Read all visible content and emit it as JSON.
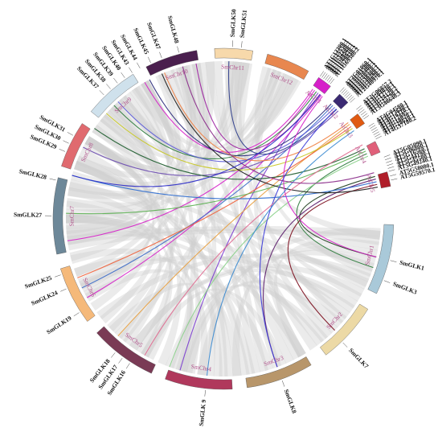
{
  "chromosomes": [
    {
      "id": "SmChr1",
      "label": "SmChr1",
      "color": "#a9c9d9",
      "text_color": "#b0508a",
      "start": 92,
      "end": 116
    },
    {
      "id": "SmChr2",
      "label": "SmChr2",
      "color": "#ecd9a5",
      "text_color": "#b0508a",
      "start": 122,
      "end": 143
    },
    {
      "id": "SmChr3",
      "label": "SmChr3",
      "color": "#b8966a",
      "text_color": "#b0508a",
      "start": 149,
      "end": 172
    },
    {
      "id": "SmChr4",
      "label": "SmChr4",
      "color": "#b0385c",
      "text_color": "#b0508a",
      "start": 177,
      "end": 200
    },
    {
      "id": "SmChr5",
      "label": "SmChr5",
      "color": "#7a3a55",
      "text_color": "#b0508a",
      "start": 205,
      "end": 228
    },
    {
      "id": "SmChr6",
      "label": "SmChr6",
      "color": "#f5b97a",
      "text_color": "#b0508a",
      "start": 233,
      "end": 253
    },
    {
      "id": "SmChr7",
      "label": "SmChr7",
      "color": "#6d8899",
      "text_color": "#b0508a",
      "start": 258,
      "end": 284
    },
    {
      "id": "SmChr8",
      "label": "SmChr8",
      "color": "#e06a6f",
      "text_color": "#b0508a",
      "start": 288,
      "end": 304
    },
    {
      "id": "SmChr9",
      "label": "SmChr9",
      "color": "#cfe1ec",
      "text_color": "#b0508a",
      "start": 309,
      "end": 328
    },
    {
      "id": "SmChr10",
      "label": "SmChr10",
      "color": "#4a1f4e",
      "text_color": "#b0508a",
      "start": 333,
      "end": 351
    },
    {
      "id": "SmChr11",
      "label": "SmChr11",
      "color": "#f7d9ab",
      "text_color": "#b0508a",
      "start": 357,
      "end": 10
    },
    {
      "id": "SmChr12",
      "label": "SmChr12",
      "color": "#e8874f",
      "text_color": "#b0508a",
      "start": 15,
      "end": 30
    },
    {
      "id": "AtChr1",
      "label": "AtChr1",
      "color": "#d61fc9",
      "text_color": "#b0508a",
      "start": 34,
      "end": 39
    },
    {
      "id": "AtChr2",
      "label": "AtChr2",
      "color": "#3b2a72",
      "text_color": "#b0508a",
      "start": 43,
      "end": 47
    },
    {
      "id": "AtChr3",
      "label": "AtChr3",
      "color": "#e05a12",
      "text_color": "#b0508a",
      "start": 52,
      "end": 56
    },
    {
      "id": "AtChr4",
      "label": "AtChr4",
      "color": "#e0607a",
      "text_color": "#b0508a",
      "start": 63,
      "end": 67
    },
    {
      "id": "AtChr5",
      "label": "AtChr5",
      "color": "#b01e2a",
      "text_color": "#b0508a",
      "start": 74,
      "end": 79
    }
  ],
  "genes": [
    {
      "name": "SmGLK1",
      "angle": 104
    },
    {
      "name": "SmGLK3",
      "angle": 111
    },
    {
      "name": "SmGLK7",
      "angle": 136
    },
    {
      "name": "SmGLK8",
      "angle": 160
    },
    {
      "name": "SmGLK 9",
      "angle": 186
    },
    {
      "name": "SmGLK16",
      "angle": 213
    },
    {
      "name": "SmGLK17",
      "angle": 216
    },
    {
      "name": "SmGLK18",
      "angle": 219
    },
    {
      "name": "SmGLK19",
      "angle": 237
    },
    {
      "name": "SmGLK24",
      "angle": 246
    },
    {
      "name": "SmGLK25",
      "angle": 251
    },
    {
      "name": "SmGLK27",
      "angle": 271
    },
    {
      "name": "SmGLK28",
      "angle": 283
    },
    {
      "name": "SmGLK29",
      "angle": 293
    },
    {
      "name": "SmGLK30",
      "angle": 296
    },
    {
      "name": "SmGLK31",
      "angle": 299
    },
    {
      "name": "SmGLK37",
      "angle": 316
    },
    {
      "name": "SmGLK38",
      "angle": 319
    },
    {
      "name": "SmGLK39",
      "angle": 322
    },
    {
      "name": "SmGLK40",
      "angle": 325
    },
    {
      "name": "SmGLK43",
      "angle": 328
    },
    {
      "name": "SmGLK44",
      "angle": 331
    },
    {
      "name": "SmGLK45",
      "angle": 335
    },
    {
      "name": "SmGLK47",
      "angle": 339
    },
    {
      "name": "SmGLK48",
      "angle": 345
    },
    {
      "name": "SmGLK50",
      "angle": 3
    },
    {
      "name": "SmGLK51",
      "angle": 6
    },
    {
      "name": "AT1G13300.1",
      "angle": 34.2
    },
    {
      "name": "AT1G25550.1",
      "angle": 34.9
    },
    {
      "name": "AT1G32240.1",
      "angle": 35.6
    },
    {
      "name": "AT1G49560.1",
      "angle": 36.3
    },
    {
      "name": "AT1G68670.1",
      "angle": 37.0
    },
    {
      "name": "AT1G79430.2",
      "angle": 37.7
    },
    {
      "name": "AT1G69580.2",
      "angle": 38.4
    },
    {
      "name": "AT2G01060.1",
      "angle": 42.6
    },
    {
      "name": "AT2G03500.1",
      "angle": 43.3
    },
    {
      "name": "AT2G20400.1",
      "angle": 44.0
    },
    {
      "name": "AT2G20570.2",
      "angle": 44.7
    },
    {
      "name": "AT2G38300.1",
      "angle": 45.4
    },
    {
      "name": "AT2G40260.1",
      "angle": 46.1
    },
    {
      "name": "AT2G40970.1",
      "angle": 46.8
    },
    {
      "name": "AT2G40970.1",
      "angle": 47.5
    },
    {
      "name": "AT2G06857.2",
      "angle": 50.6
    },
    {
      "name": "AT3G04030.1",
      "angle": 51.4
    },
    {
      "name": "AT3G12730.1",
      "angle": 52.2
    },
    {
      "name": "AT3G24120.2",
      "angle": 53.0
    },
    {
      "name": "AT3G25790.1",
      "angle": 53.8
    },
    {
      "name": "AT3G46640.3",
      "angle": 54.6
    },
    {
      "name": "AT4G04580.1",
      "angle": 57.6
    },
    {
      "name": "AT4G13640.1",
      "angle": 58.4
    },
    {
      "name": "AT4G16110.1",
      "angle": 59.2
    },
    {
      "name": "AT4G17695.1",
      "angle": 60.0
    },
    {
      "name": "AT4G18020.1",
      "angle": 60.8
    },
    {
      "name": "AT4G28610.1",
      "angle": 61.6
    },
    {
      "name": "AT4G37180.2",
      "angle": 62.4
    },
    {
      "name": "AT5G05090.1",
      "angle": 69.0
    },
    {
      "name": "AT5G06800.1",
      "angle": 70.0
    },
    {
      "name": "AT5G16560.1",
      "angle": 71.0
    },
    {
      "name": "AT5G44190.1",
      "angle": 72.0
    },
    {
      "name": "AT5G45580.1",
      "angle": 73.0
    },
    {
      "name": "AT5G49240.1",
      "angle": 74.0
    },
    {
      "name": "AT5G58080.1",
      "angle": 75.6
    },
    {
      "name": "AT5G59570.1",
      "angle": 77.0
    }
  ],
  "gray_links": [
    [
      95,
      188
    ],
    [
      100,
      150
    ],
    [
      98,
      260
    ],
    [
      103,
      175
    ],
    [
      108,
      300
    ],
    [
      112,
      232
    ],
    [
      114,
      120
    ],
    [
      118,
      215
    ],
    [
      125,
      245
    ],
    [
      128,
      308
    ],
    [
      132,
      193
    ],
    [
      135,
      283
    ],
    [
      138,
      358
    ],
    [
      140,
      200
    ],
    [
      145,
      345
    ],
    [
      150,
      265
    ],
    [
      155,
      320
    ],
    [
      158,
      210
    ],
    [
      163,
      250
    ],
    [
      165,
      5
    ],
    [
      168,
      340
    ],
    [
      170,
      292
    ],
    [
      175,
      225
    ],
    [
      178,
      305
    ],
    [
      182,
      270
    ],
    [
      185,
      350
    ],
    [
      188,
      255
    ],
    [
      192,
      315
    ],
    [
      195,
      240
    ],
    [
      198,
      330
    ],
    [
      203,
      280
    ],
    [
      208,
      352
    ],
    [
      212,
      300
    ],
    [
      218,
      325
    ],
    [
      222,
      268
    ],
    [
      226,
      348
    ],
    [
      236,
      314
    ],
    [
      241,
      295
    ],
    [
      246,
      355
    ],
    [
      250,
      336
    ],
    [
      262,
      316
    ],
    [
      266,
      344
    ],
    [
      272,
      5
    ],
    [
      276,
      300
    ],
    [
      280,
      327
    ],
    [
      286,
      8
    ],
    [
      292,
      346
    ],
    [
      298,
      20
    ],
    [
      305,
      322
    ],
    [
      312,
      25
    ],
    [
      318,
      3
    ],
    [
      326,
      18
    ],
    [
      337,
      28
    ],
    [
      342,
      8
    ],
    [
      355,
      22
    ],
    [
      2,
      96
    ],
    [
      6,
      130
    ],
    [
      9,
      160
    ],
    [
      16,
      110
    ],
    [
      20,
      150
    ],
    [
      24,
      220
    ],
    [
      27,
      270
    ],
    [
      96,
      262
    ],
    [
      106,
      195
    ],
    [
      115,
      290
    ],
    [
      123,
      215
    ],
    [
      142,
      270
    ],
    [
      152,
      330
    ],
    [
      172,
      290
    ],
    [
      180,
      330
    ],
    [
      196,
      290
    ],
    [
      210,
      275
    ],
    [
      230,
      300
    ],
    [
      244,
      270
    ],
    [
      256,
      300
    ],
    [
      264,
      290
    ],
    [
      282,
      310
    ],
    [
      300,
      330
    ],
    [
      310,
      345
    ],
    [
      320,
      350
    ]
  ],
  "color_links": [
    {
      "a": 34.6,
      "b": 330,
      "color": "#d61fc9"
    },
    {
      "a": 35.4,
      "b": 262,
      "color": "#d61fc9"
    },
    {
      "a": 36.2,
      "b": 316,
      "color": "#2a7a3a"
    },
    {
      "a": 37.0,
      "b": 196,
      "color": "#7a3ad0"
    },
    {
      "a": 37.8,
      "b": 350,
      "color": "#9b1fa0"
    },
    {
      "a": 38.4,
      "b": 240,
      "color": "#d61fc9"
    },
    {
      "a": 43.2,
      "b": 332,
      "color": "#2a2a7a"
    },
    {
      "a": 44.0,
      "b": 244,
      "color": "#3b6ac8"
    },
    {
      "a": 45.0,
      "b": 318,
      "color": "#5a5ad8"
    },
    {
      "a": 46.0,
      "b": 2,
      "color": "#2a3a8a"
    },
    {
      "a": 46.8,
      "b": 297,
      "color": "#6a4ab0"
    },
    {
      "a": 52.4,
      "b": 338,
      "color": "#f08040"
    },
    {
      "a": 53.2,
      "b": 222,
      "color": "#e8a040"
    },
    {
      "a": 54.2,
      "b": 248,
      "color": "#f0603a"
    },
    {
      "a": 55.0,
      "b": 312,
      "color": "#c8c820"
    },
    {
      "a": 63.6,
      "b": 305,
      "color": "#1a5a2a"
    },
    {
      "a": 64.6,
      "b": 272,
      "color": "#5ab050"
    },
    {
      "a": 65.6,
      "b": 108,
      "color": "#2a7a3a"
    },
    {
      "a": 66.6,
      "b": 200,
      "color": "#8ad08a"
    },
    {
      "a": 74.4,
      "b": 104,
      "color": "#1a3a1a"
    },
    {
      "a": 75.4,
      "b": 160,
      "color": "#5a1a6a"
    },
    {
      "a": 76.4,
      "b": 286,
      "color": "#2a6ad0"
    },
    {
      "a": 77.4,
      "b": 135,
      "color": "#7a0a1a"
    },
    {
      "a": 78.4,
      "b": 337,
      "color": "#1a1a1a"
    },
    {
      "a": 39.0,
      "b": 104,
      "color": "#d61fc9"
    },
    {
      "a": 45.8,
      "b": 160,
      "color": "#3a3ad8"
    },
    {
      "a": 62.0,
      "b": 210,
      "color": "#e06a90"
    },
    {
      "a": 56.0,
      "b": 186,
      "color": "#3a8ad0"
    },
    {
      "a": 73.0,
      "b": 345,
      "color": "#8a2a8a"
    },
    {
      "a": 38.0,
      "b": 286,
      "color": "#2a2ac8"
    }
  ]
}
